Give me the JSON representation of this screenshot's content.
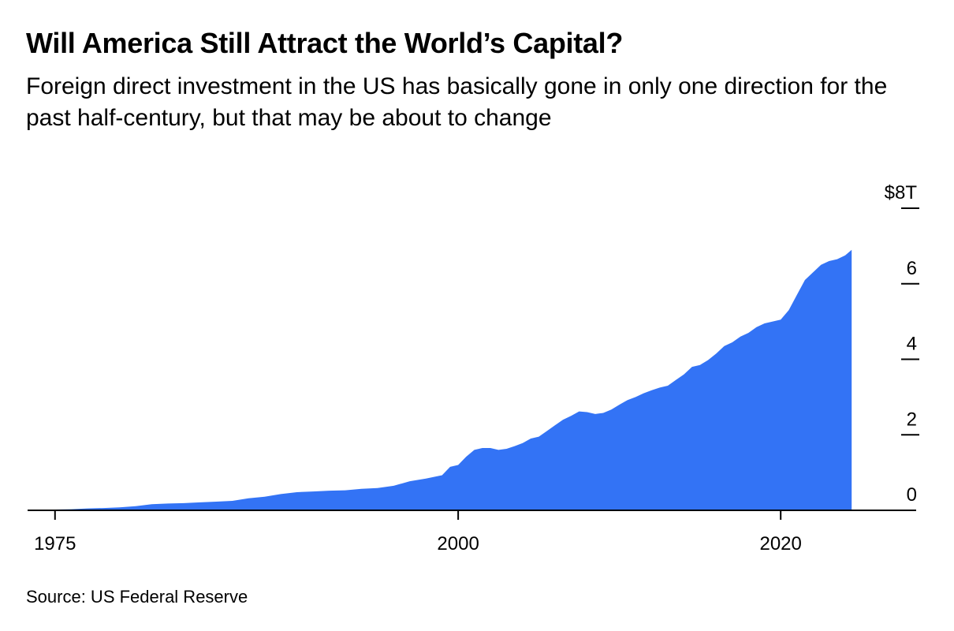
{
  "header": {
    "title": "Will America Still Attract the World’s Capital?",
    "subtitle": "Foreign direct investment in the US has basically gone in only one direction for the past half-century, but that may be about to change"
  },
  "footer": {
    "source": "Source: US Federal Reserve"
  },
  "colors": {
    "area": "#3373f5",
    "axis": "#000000"
  },
  "chart_data": {
    "type": "area",
    "title": "Will America Still Attract the World’s Capital?",
    "subtitle": "Foreign direct investment in the US has basically gone in only one direction for the past half-century, but that may be about to change",
    "xlabel": "",
    "ylabel": "",
    "grid": false,
    "legend": "none",
    "unit": "trillions of US dollars",
    "xlim": [
      1973.3,
      2028.4
    ],
    "ylim": [
      0,
      8
    ],
    "x_ticks": [
      1975,
      2000,
      2020
    ],
    "x_tick_labels": [
      "1975",
      "2000",
      "2020"
    ],
    "y_ticks": [
      0,
      2,
      4,
      6,
      8
    ],
    "y_tick_labels": [
      "0",
      "2",
      "4",
      "6",
      "$8T"
    ],
    "series": [
      {
        "x": [
          1975,
          1976,
          1977,
          1978,
          1979,
          1980,
          1981,
          1982,
          1983,
          1984,
          1985,
          1986,
          1987,
          1988,
          1989,
          1990,
          1991,
          1992,
          1993,
          1994,
          1995,
          1996,
          1997,
          1998,
          1999,
          1999.5,
          2000,
          2000.5,
          2001,
          2001.5,
          2002,
          2002.5,
          2003,
          2003.5,
          2004,
          2004.5,
          2005,
          2005.5,
          2006,
          2006.5,
          2007,
          2007.5,
          2008,
          2008.5,
          2009,
          2009.5,
          2010,
          2010.5,
          2011,
          2011.5,
          2012,
          2012.5,
          2013,
          2013.5,
          2014,
          2014.5,
          2015,
          2015.5,
          2016,
          2016.5,
          2017,
          2017.5,
          2018,
          2018.5,
          2019,
          2019.5,
          2020,
          2020.5,
          2021,
          2021.5,
          2022,
          2022.5,
          2023,
          2023.5,
          2024,
          2024.4
        ],
        "values": [
          0.02,
          0.03,
          0.05,
          0.06,
          0.08,
          0.11,
          0.16,
          0.18,
          0.19,
          0.21,
          0.23,
          0.25,
          0.32,
          0.36,
          0.43,
          0.48,
          0.5,
          0.52,
          0.53,
          0.57,
          0.59,
          0.65,
          0.77,
          0.84,
          0.93,
          1.15,
          1.2,
          1.42,
          1.6,
          1.65,
          1.65,
          1.6,
          1.63,
          1.7,
          1.78,
          1.9,
          1.95,
          2.1,
          2.25,
          2.4,
          2.5,
          2.62,
          2.6,
          2.55,
          2.58,
          2.67,
          2.8,
          2.92,
          3.0,
          3.1,
          3.18,
          3.25,
          3.3,
          3.45,
          3.6,
          3.8,
          3.85,
          3.98,
          4.15,
          4.35,
          4.45,
          4.6,
          4.7,
          4.85,
          4.95,
          5.0,
          5.05,
          5.3,
          5.7,
          6.1,
          6.3,
          6.5,
          6.6,
          6.65,
          6.75,
          6.9
        ]
      }
    ]
  }
}
